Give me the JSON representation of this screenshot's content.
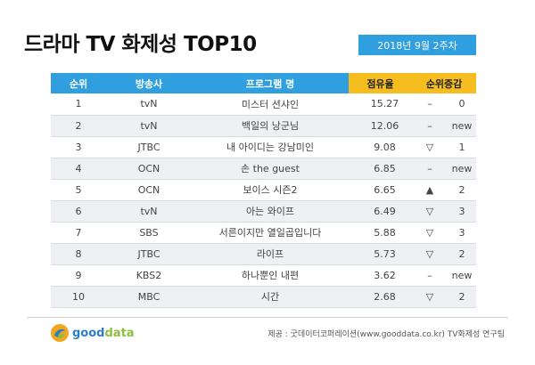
{
  "title": "드라마 TV 화제성 TOP10",
  "date": "2018년 9월 2주차",
  "headers": {
    "rank": "순위",
    "channel": "방송사",
    "program": "프로그램 명",
    "share": "점유율",
    "change": "순위증감"
  },
  "rows": [
    {
      "rank": "1",
      "channel": "tvN",
      "program": "미스터 션샤인",
      "share": "15.27",
      "mark": "–",
      "change": "0"
    },
    {
      "rank": "2",
      "channel": "tvN",
      "program": "백일의 낭군님",
      "share": "12.06",
      "mark": "–",
      "change": "new"
    },
    {
      "rank": "3",
      "channel": "JTBC",
      "program": "내 아이디는 강남미인",
      "share": "9.08",
      "mark": "▽",
      "change": "1"
    },
    {
      "rank": "4",
      "channel": "OCN",
      "program": "손 the guest",
      "share": "6.85",
      "mark": "–",
      "change": "new"
    },
    {
      "rank": "5",
      "channel": "OCN",
      "program": "보이스 시즌2",
      "share": "6.65",
      "mark": "▲",
      "change": "2"
    },
    {
      "rank": "6",
      "channel": "tvN",
      "program": "아는 와이프",
      "share": "6.49",
      "mark": "▽",
      "change": "3"
    },
    {
      "rank": "7",
      "channel": "SBS",
      "program": "서른이지만 열일곱입니다",
      "share": "5.88",
      "mark": "▽",
      "change": "3"
    },
    {
      "rank": "8",
      "channel": "JTBC",
      "program": "라이프",
      "share": "5.73",
      "mark": "▽",
      "change": "2"
    },
    {
      "rank": "9",
      "channel": "KBS2",
      "program": "하나뿐인 내편",
      "share": "3.62",
      "mark": "–",
      "change": "new"
    },
    {
      "rank": "10",
      "channel": "MBC",
      "program": "시간",
      "share": "2.68",
      "mark": "▽",
      "change": "2"
    }
  ],
  "logo": {
    "part1": "good",
    "part2": "data",
    "icon": "gooddata-swirl-icon"
  },
  "source": "제공 : 굿데이터코퍼레이션(www.gooddata.co.kr) TV화제성 연구팀",
  "colors": {
    "header_blue": "#2f9fe0",
    "header_highlight": "#f5bd1f",
    "row_alt": "#eef0f3"
  }
}
